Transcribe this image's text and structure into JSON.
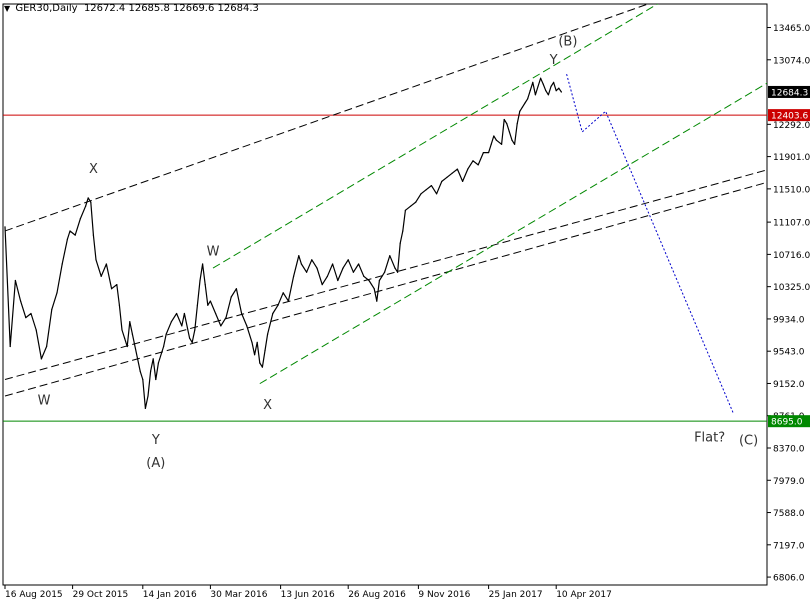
{
  "header": {
    "symbol": "GER30,Daily",
    "ohlc": "12672.4 12685.8 12669.6 12684.3"
  },
  "chart_data": {
    "type": "line",
    "title": "",
    "xlabel": "",
    "ylabel": "",
    "ylim": [
      6710,
      13750
    ],
    "y_ticks": [
      "13465.0",
      "13074.0",
      "12292.0",
      "11901.0",
      "11510.0",
      "11107.0",
      "10716.0",
      "10325.0",
      "9934.0",
      "9543.0",
      "9152.0",
      "8761.0",
      "8370.0",
      "7979.0",
      "7588.0",
      "7197.0",
      "6806.0"
    ],
    "x_ticks": [
      "16 Aug 2015",
      "29 Oct 2015",
      "14 Jan 2016",
      "30 Mar 2016",
      "13 Jun 2016",
      "26 Aug 2016",
      "9 Nov 2016",
      "25 Jan 2017",
      "10 Apr 2017"
    ],
    "x_tick_bars": [
      0,
      52,
      106,
      158,
      212,
      264,
      318,
      372,
      424
    ],
    "total_bars": 540,
    "current_price": 12684.3,
    "current_price_label": "12684.3",
    "series": [
      {
        "points": [
          [
            0,
            11050
          ],
          [
            4,
            9600
          ],
          [
            8,
            10400
          ],
          [
            12,
            10150
          ],
          [
            16,
            9950
          ],
          [
            20,
            10000
          ],
          [
            24,
            9800
          ],
          [
            28,
            9450
          ],
          [
            32,
            9600
          ],
          [
            36,
            10050
          ],
          [
            40,
            10250
          ],
          [
            44,
            10600
          ],
          [
            48,
            10900
          ],
          [
            50,
            11000
          ],
          [
            54,
            10950
          ],
          [
            58,
            11150
          ],
          [
            62,
            11300
          ],
          [
            64,
            11400
          ],
          [
            66,
            11350
          ],
          [
            68,
            10950
          ],
          [
            70,
            10650
          ],
          [
            74,
            10450
          ],
          [
            78,
            10600
          ],
          [
            82,
            10300
          ],
          [
            86,
            10350
          ],
          [
            88,
            10100
          ],
          [
            90,
            9800
          ],
          [
            92,
            9700
          ],
          [
            94,
            9600
          ],
          [
            96,
            9900
          ],
          [
            98,
            9750
          ],
          [
            102,
            9450
          ],
          [
            104,
            9300
          ],
          [
            106,
            9200
          ],
          [
            108,
            8850
          ],
          [
            110,
            9000
          ],
          [
            112,
            9300
          ],
          [
            114,
            9450
          ],
          [
            116,
            9200
          ],
          [
            118,
            9400
          ],
          [
            122,
            9600
          ],
          [
            124,
            9750
          ],
          [
            128,
            9900
          ],
          [
            132,
            10000
          ],
          [
            136,
            9850
          ],
          [
            138,
            10000
          ],
          [
            142,
            9700
          ],
          [
            144,
            9650
          ],
          [
            146,
            9800
          ],
          [
            148,
            10100
          ],
          [
            150,
            10400
          ],
          [
            152,
            10600
          ],
          [
            154,
            10350
          ],
          [
            156,
            10100
          ],
          [
            158,
            10150
          ],
          [
            162,
            10000
          ],
          [
            166,
            9850
          ],
          [
            170,
            9950
          ],
          [
            174,
            10200
          ],
          [
            178,
            10300
          ],
          [
            182,
            10000
          ],
          [
            186,
            9850
          ],
          [
            190,
            9650
          ],
          [
            192,
            9500
          ],
          [
            194,
            9650
          ],
          [
            196,
            9400
          ],
          [
            198,
            9350
          ],
          [
            200,
            9550
          ],
          [
            202,
            9750
          ],
          [
            206,
            10000
          ],
          [
            210,
            10100
          ],
          [
            214,
            10250
          ],
          [
            218,
            10150
          ],
          [
            222,
            10450
          ],
          [
            226,
            10700
          ],
          [
            228,
            10600
          ],
          [
            232,
            10500
          ],
          [
            236,
            10650
          ],
          [
            240,
            10550
          ],
          [
            244,
            10350
          ],
          [
            248,
            10450
          ],
          [
            252,
            10600
          ],
          [
            256,
            10400
          ],
          [
            260,
            10550
          ],
          [
            264,
            10650
          ],
          [
            268,
            10500
          ],
          [
            272,
            10600
          ],
          [
            276,
            10450
          ],
          [
            280,
            10400
          ],
          [
            284,
            10300
          ],
          [
            286,
            10150
          ],
          [
            288,
            10400
          ],
          [
            292,
            10500
          ],
          [
            296,
            10700
          ],
          [
            300,
            10550
          ],
          [
            302,
            10500
          ],
          [
            304,
            10850
          ],
          [
            306,
            11000
          ],
          [
            308,
            11250
          ],
          [
            312,
            11300
          ],
          [
            316,
            11350
          ],
          [
            320,
            11450
          ],
          [
            324,
            11500
          ],
          [
            328,
            11550
          ],
          [
            332,
            11450
          ],
          [
            336,
            11600
          ],
          [
            340,
            11650
          ],
          [
            344,
            11700
          ],
          [
            348,
            11750
          ],
          [
            352,
            11600
          ],
          [
            356,
            11750
          ],
          [
            360,
            11850
          ],
          [
            364,
            11800
          ],
          [
            368,
            11950
          ],
          [
            372,
            11950
          ],
          [
            374,
            12050
          ],
          [
            376,
            12150
          ],
          [
            378,
            12100
          ],
          [
            382,
            12050
          ],
          [
            384,
            12350
          ],
          [
            386,
            12300
          ],
          [
            388,
            12200
          ],
          [
            390,
            12100
          ],
          [
            392,
            12050
          ],
          [
            394,
            12300
          ],
          [
            396,
            12450
          ],
          [
            398,
            12500
          ],
          [
            400,
            12550
          ],
          [
            402,
            12600
          ],
          [
            404,
            12700
          ],
          [
            406,
            12800
          ],
          [
            408,
            12650
          ],
          [
            410,
            12750
          ],
          [
            412,
            12850
          ],
          [
            414,
            12780
          ],
          [
            416,
            12700
          ],
          [
            418,
            12650
          ],
          [
            420,
            12750
          ],
          [
            422,
            12800
          ],
          [
            424,
            12700
          ],
          [
            426,
            12730
          ],
          [
            428,
            12684
          ]
        ]
      }
    ],
    "horizontal_lines": [
      {
        "value": 12403.6,
        "label": "12403.6",
        "color": "#cc0000"
      },
      {
        "value": 8695.0,
        "label": "8695.0",
        "color": "#008800"
      }
    ],
    "trend_lines": [
      {
        "from": [
          0,
          11000
        ],
        "to": [
          500,
          13780
        ],
        "style": "dashed",
        "color": "#000000"
      },
      {
        "from": [
          0,
          9200
        ],
        "to": [
          600,
          11800
        ],
        "style": "dashed",
        "color": "#000000"
      },
      {
        "from": [
          0,
          9000
        ],
        "to": [
          600,
          11650
        ],
        "style": "dashed",
        "color": "#000000"
      },
      {
        "from": [
          160,
          10550
        ],
        "to": [
          503,
          13760
        ],
        "style": "dashed",
        "color": "#008800"
      },
      {
        "from": [
          196,
          9150
        ],
        "to": [
          600,
          12920
        ],
        "style": "dashed",
        "color": "#008800"
      }
    ],
    "projection": {
      "color": "#0000cc",
      "points": [
        [
          432,
          12900
        ],
        [
          444,
          12200
        ],
        [
          462,
          12450
        ],
        [
          560,
          8800
        ]
      ]
    },
    "annotations": [
      {
        "text": "(B)",
        "at": [
          433,
          13250
        ]
      },
      {
        "text": "Y",
        "at": [
          422,
          13020
        ]
      },
      {
        "text": "X",
        "at": [
          68,
          11700
        ]
      },
      {
        "text": "W",
        "at": [
          160,
          10700
        ]
      },
      {
        "text": "W",
        "at": [
          30,
          8900
        ]
      },
      {
        "text": "X",
        "at": [
          202,
          8840
        ]
      },
      {
        "text": "Y",
        "at": [
          116,
          8420
        ]
      },
      {
        "text": "(A)",
        "at": [
          116,
          8140
        ]
      },
      {
        "text": "Flat?",
        "at": [
          542,
          8450
        ]
      },
      {
        "text": "(C)",
        "at": [
          572,
          8410
        ]
      }
    ]
  }
}
